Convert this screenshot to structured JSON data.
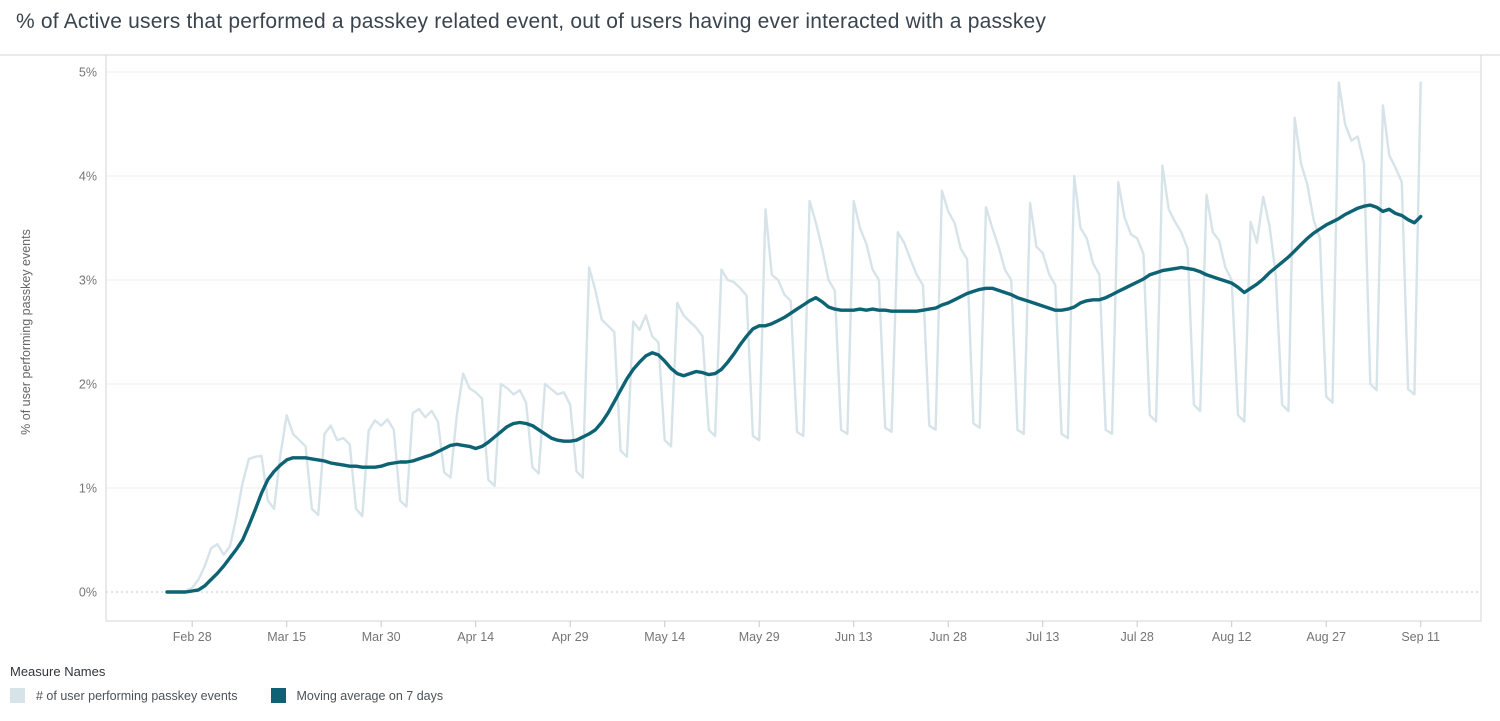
{
  "title": "% of Active users that performed a passkey related event, out of users having ever interacted with a passkey",
  "legend": {
    "title": "Measure Names",
    "items": [
      {
        "label": "# of user performing passkey events",
        "color": "#d6e4ea"
      },
      {
        "label": "Moving average on 7 days",
        "color": "#0d6274"
      }
    ]
  },
  "colors": {
    "background": "#ffffff",
    "title_text": "#3a444e",
    "axis_text": "#757575",
    "plot_border": "#d4d4d4",
    "gridline": "#ececec",
    "zero_line": "#c9c9c9",
    "tick_mark": "#c9c9c9",
    "daily_series": "#d6e4ea",
    "moving_average": "#0d6274"
  },
  "chart_data": {
    "type": "line",
    "title": "% of Active users that performed a passkey related event, out of users having ever interacted with a passkey",
    "xlabel": "",
    "ylabel": "% of user performing passkey events",
    "ylim": [
      0,
      5
    ],
    "y_tick_labels": [
      "0%",
      "1%",
      "2%",
      "3%",
      "4%",
      "5%"
    ],
    "x_tick_labels": [
      "Feb 28",
      "Mar 15",
      "Mar 30",
      "Apr 14",
      "Apr 29",
      "May 14",
      "May 29",
      "Jun 13",
      "Jun 28",
      "Jul 13",
      "Jul 28",
      "Aug 12",
      "Aug 27",
      "Sep 11"
    ],
    "x_tick_day_indices": [
      4,
      19,
      34,
      49,
      64,
      79,
      94,
      109,
      124,
      139,
      154,
      169,
      184,
      199
    ],
    "grid": "horizontal light-gray lines at each 1%; 0% line dotted",
    "legend_title": "Measure Names",
    "legend_position": "bottom-left",
    "dates": [
      "Feb 24",
      "Feb 25",
      "Feb 26",
      "Feb 27",
      "Feb 28",
      "Mar 1",
      "Mar 2",
      "Mar 3",
      "Mar 4",
      "Mar 5",
      "Mar 6",
      "Mar 7",
      "Mar 8",
      "Mar 9",
      "Mar 10",
      "Mar 11",
      "Mar 12",
      "Mar 13",
      "Mar 14",
      "Mar 15",
      "Mar 16",
      "Mar 17",
      "Mar 18",
      "Mar 19",
      "Mar 20",
      "Mar 21",
      "Mar 22",
      "Mar 23",
      "Mar 24",
      "Mar 25",
      "Mar 26",
      "Mar 27",
      "Mar 28",
      "Mar 29",
      "Mar 30",
      "Mar 31",
      "Apr 1",
      "Apr 2",
      "Apr 3",
      "Apr 4",
      "Apr 5",
      "Apr 6",
      "Apr 7",
      "Apr 8",
      "Apr 9",
      "Apr 10",
      "Apr 11",
      "Apr 12",
      "Apr 13",
      "Apr 14",
      "Apr 15",
      "Apr 16",
      "Apr 17",
      "Apr 18",
      "Apr 19",
      "Apr 20",
      "Apr 21",
      "Apr 22",
      "Apr 23",
      "Apr 24",
      "Apr 25",
      "Apr 26",
      "Apr 27",
      "Apr 28",
      "Apr 29",
      "Apr 30",
      "May 1",
      "May 2",
      "May 3",
      "May 4",
      "May 5",
      "May 6",
      "May 7",
      "May 8",
      "May 9",
      "May 10",
      "May 11",
      "May 12",
      "May 13",
      "May 14",
      "May 15",
      "May 16",
      "May 17",
      "May 18",
      "May 19",
      "May 20",
      "May 21",
      "May 22",
      "May 23",
      "May 24",
      "May 25",
      "May 26",
      "May 27",
      "May 28",
      "May 29",
      "May 30",
      "May 31",
      "Jun 1",
      "Jun 2",
      "Jun 3",
      "Jun 4",
      "Jun 5",
      "Jun 6",
      "Jun 7",
      "Jun 8",
      "Jun 9",
      "Jun 10",
      "Jun 11",
      "Jun 12",
      "Jun 13",
      "Jun 14",
      "Jun 15",
      "Jun 16",
      "Jun 17",
      "Jun 18",
      "Jun 19",
      "Jun 20",
      "Jun 21",
      "Jun 22",
      "Jun 23",
      "Jun 24",
      "Jun 25",
      "Jun 26",
      "Jun 27",
      "Jun 28",
      "Jun 29",
      "Jun 30",
      "Jul 1",
      "Jul 2",
      "Jul 3",
      "Jul 4",
      "Jul 5",
      "Jul 6",
      "Jul 7",
      "Jul 8",
      "Jul 9",
      "Jul 10",
      "Jul 11",
      "Jul 12",
      "Jul 13",
      "Jul 14",
      "Jul 15",
      "Jul 16",
      "Jul 17",
      "Jul 18",
      "Jul 19",
      "Jul 20",
      "Jul 21",
      "Jul 22",
      "Jul 23",
      "Jul 24",
      "Jul 25",
      "Jul 26",
      "Jul 27",
      "Jul 28",
      "Jul 29",
      "Jul 30",
      "Jul 31",
      "Aug 1",
      "Aug 2",
      "Aug 3",
      "Aug 4",
      "Aug 5",
      "Aug 6",
      "Aug 7",
      "Aug 8",
      "Aug 9",
      "Aug 10",
      "Aug 11",
      "Aug 12",
      "Aug 13",
      "Aug 14",
      "Aug 15",
      "Aug 16",
      "Aug 17",
      "Aug 18",
      "Aug 19",
      "Aug 20",
      "Aug 21",
      "Aug 22",
      "Aug 23",
      "Aug 24",
      "Aug 25",
      "Aug 26",
      "Aug 27",
      "Aug 28",
      "Aug 29",
      "Aug 30",
      "Aug 31",
      "Sep 1",
      "Sep 2",
      "Sep 3",
      "Sep 4",
      "Sep 5",
      "Sep 6",
      "Sep 7",
      "Sep 8",
      "Sep 9",
      "Sep 10",
      "Sep 11"
    ],
    "series": [
      {
        "name": "# of user performing passkey events",
        "color": "#d6e4ea",
        "line_width": 2.4,
        "values": [
          0.0,
          0.0,
          0.0,
          0.01,
          0.04,
          0.12,
          0.25,
          0.42,
          0.46,
          0.36,
          0.44,
          0.72,
          1.05,
          1.28,
          1.3,
          1.31,
          0.88,
          0.8,
          1.32,
          1.7,
          1.52,
          1.46,
          1.4,
          0.8,
          0.74,
          1.52,
          1.6,
          1.46,
          1.48,
          1.42,
          0.8,
          0.73,
          1.55,
          1.65,
          1.6,
          1.66,
          1.56,
          0.88,
          0.82,
          1.72,
          1.76,
          1.68,
          1.74,
          1.64,
          1.15,
          1.1,
          1.7,
          2.1,
          1.96,
          1.92,
          1.86,
          1.08,
          1.02,
          2.0,
          1.96,
          1.9,
          1.94,
          1.82,
          1.2,
          1.14,
          2.0,
          1.95,
          1.9,
          1.92,
          1.8,
          1.16,
          1.1,
          3.12,
          2.9,
          2.62,
          2.56,
          2.5,
          1.36,
          1.3,
          2.6,
          2.52,
          2.66,
          2.46,
          2.4,
          1.46,
          1.4,
          2.78,
          2.66,
          2.6,
          2.54,
          2.46,
          1.56,
          1.5,
          3.1,
          3.0,
          2.98,
          2.92,
          2.85,
          1.5,
          1.46,
          3.68,
          3.05,
          3.0,
          2.86,
          2.8,
          1.54,
          1.5,
          3.76,
          3.55,
          3.3,
          3.0,
          2.9,
          1.56,
          1.52,
          3.76,
          3.5,
          3.35,
          3.1,
          3.0,
          1.58,
          1.54,
          3.46,
          3.36,
          3.2,
          3.05,
          2.95,
          1.6,
          1.56,
          3.86,
          3.66,
          3.55,
          3.3,
          3.2,
          1.62,
          1.58,
          3.7,
          3.5,
          3.32,
          3.1,
          3.0,
          1.56,
          1.52,
          3.74,
          3.32,
          3.26,
          3.06,
          2.95,
          1.52,
          1.48,
          4.0,
          3.5,
          3.4,
          3.16,
          3.05,
          1.56,
          1.52,
          3.94,
          3.6,
          3.44,
          3.4,
          3.25,
          1.7,
          1.64,
          4.1,
          3.68,
          3.56,
          3.46,
          3.3,
          1.8,
          1.74,
          3.82,
          3.46,
          3.38,
          3.12,
          3.0,
          1.7,
          1.64,
          3.56,
          3.36,
          3.8,
          3.52,
          3.05,
          1.8,
          1.74,
          4.56,
          4.12,
          3.92,
          3.58,
          3.4,
          1.88,
          1.82,
          4.9,
          4.5,
          4.34,
          4.38,
          4.12,
          2.0,
          1.94,
          4.68,
          4.2,
          4.08,
          3.94,
          1.95,
          1.9,
          4.9
        ]
      },
      {
        "name": "Moving average on 7 days",
        "color": "#0d6274",
        "line_width": 3.4,
        "values": [
          0.0,
          0.0,
          0.0,
          0.0,
          0.01,
          0.02,
          0.06,
          0.12,
          0.18,
          0.25,
          0.33,
          0.41,
          0.5,
          0.64,
          0.79,
          0.95,
          1.08,
          1.16,
          1.22,
          1.27,
          1.29,
          1.29,
          1.29,
          1.28,
          1.27,
          1.26,
          1.24,
          1.23,
          1.22,
          1.21,
          1.21,
          1.2,
          1.2,
          1.2,
          1.21,
          1.23,
          1.24,
          1.25,
          1.25,
          1.26,
          1.28,
          1.3,
          1.32,
          1.35,
          1.38,
          1.41,
          1.42,
          1.41,
          1.4,
          1.38,
          1.4,
          1.44,
          1.49,
          1.54,
          1.59,
          1.62,
          1.63,
          1.62,
          1.6,
          1.56,
          1.52,
          1.48,
          1.46,
          1.45,
          1.45,
          1.46,
          1.49,
          1.52,
          1.56,
          1.63,
          1.72,
          1.83,
          1.94,
          2.05,
          2.14,
          2.21,
          2.27,
          2.3,
          2.28,
          2.22,
          2.15,
          2.1,
          2.08,
          2.1,
          2.12,
          2.11,
          2.09,
          2.1,
          2.14,
          2.21,
          2.29,
          2.38,
          2.46,
          2.53,
          2.56,
          2.56,
          2.58,
          2.61,
          2.64,
          2.68,
          2.72,
          2.76,
          2.8,
          2.83,
          2.79,
          2.74,
          2.72,
          2.71,
          2.71,
          2.71,
          2.72,
          2.71,
          2.72,
          2.71,
          2.71,
          2.7,
          2.7,
          2.7,
          2.7,
          2.7,
          2.71,
          2.72,
          2.73,
          2.76,
          2.78,
          2.81,
          2.84,
          2.87,
          2.89,
          2.91,
          2.92,
          2.92,
          2.9,
          2.88,
          2.86,
          2.83,
          2.81,
          2.79,
          2.77,
          2.75,
          2.73,
          2.71,
          2.71,
          2.72,
          2.74,
          2.78,
          2.8,
          2.81,
          2.81,
          2.83,
          2.86,
          2.89,
          2.92,
          2.95,
          2.98,
          3.01,
          3.05,
          3.07,
          3.09,
          3.1,
          3.11,
          3.12,
          3.11,
          3.1,
          3.08,
          3.05,
          3.03,
          3.01,
          2.99,
          2.97,
          2.93,
          2.88,
          2.92,
          2.96,
          3.01,
          3.07,
          3.12,
          3.17,
          3.22,
          3.28,
          3.34,
          3.4,
          3.45,
          3.49,
          3.53,
          3.56,
          3.59,
          3.63,
          3.66,
          3.69,
          3.71,
          3.72,
          3.7,
          3.66,
          3.68,
          3.64,
          3.62,
          3.58,
          3.55,
          3.61
        ]
      }
    ]
  }
}
